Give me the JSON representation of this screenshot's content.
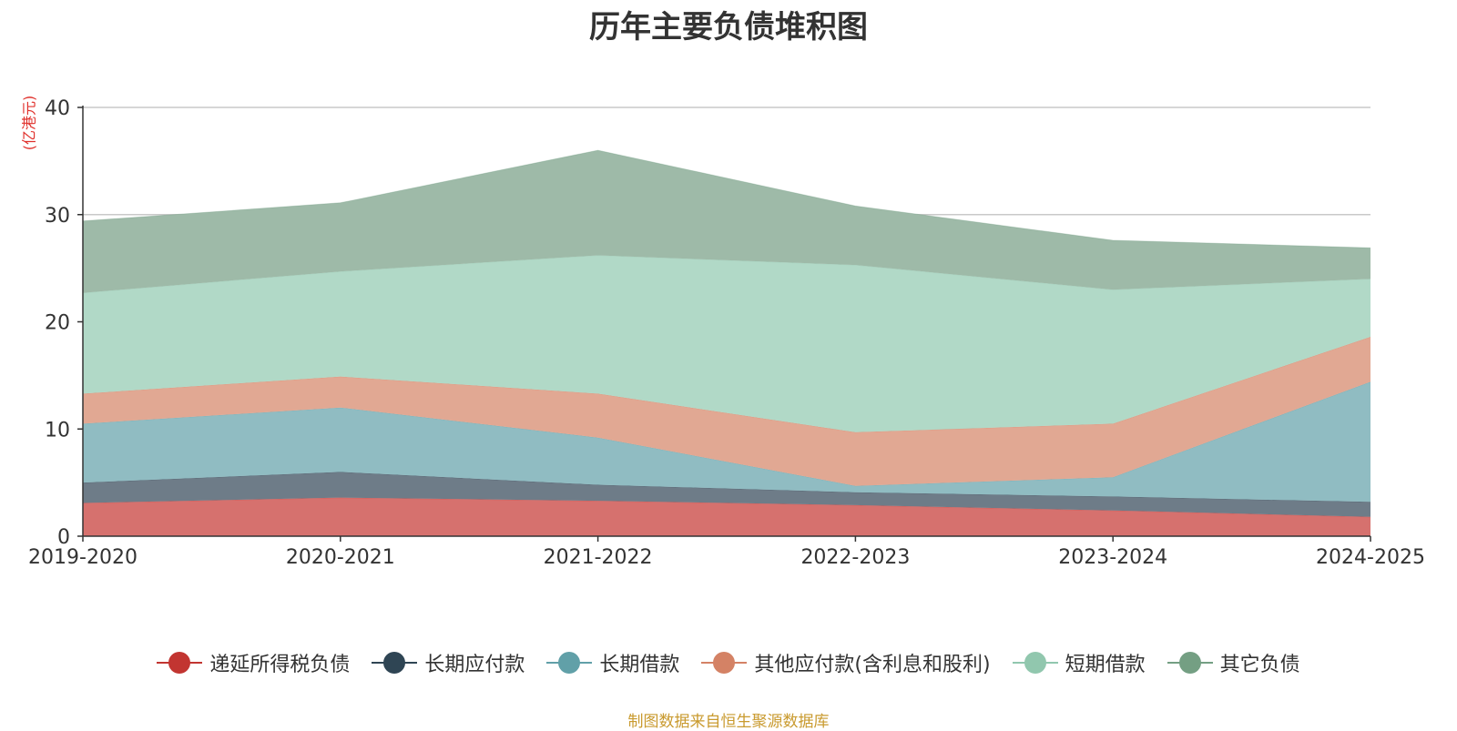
{
  "chart_data": {
    "type": "area",
    "stacked": true,
    "title": "历年主要负债堆积图",
    "unit_label": "(亿港元)",
    "categories": [
      "2019-2020",
      "2020-2021",
      "2021-2022",
      "2022-2023",
      "2023-2024",
      "2024-2025"
    ],
    "ylim": [
      0,
      40
    ],
    "yticks": [
      0,
      10,
      20,
      30,
      40
    ],
    "grid": true,
    "legend_position": "bottom",
    "series": [
      {
        "name": "递延所得税负债",
        "values": [
          3.1,
          3.6,
          3.3,
          2.9,
          2.4,
          1.8
        ],
        "color": "#c23531",
        "fill": "#d6716e"
      },
      {
        "name": "长期应付款",
        "values": [
          1.9,
          2.4,
          1.5,
          1.2,
          1.3,
          1.4
        ],
        "color": "#2f4554",
        "fill": "#6e7c88"
      },
      {
        "name": "长期借款",
        "values": [
          5.5,
          6.0,
          4.4,
          0.6,
          1.8,
          11.2
        ],
        "color": "#61a0a8",
        "fill": "#90bcc2"
      },
      {
        "name": "其他应付款(含利息和股利)",
        "values": [
          2.8,
          2.9,
          4.1,
          5.0,
          5.0,
          4.2
        ],
        "color": "#d48265",
        "fill": "#e1a893"
      },
      {
        "name": "短期借款",
        "values": [
          9.4,
          9.8,
          12.9,
          15.6,
          12.5,
          5.4
        ],
        "color": "#91c7ae",
        "fill": "#b1d9c7"
      },
      {
        "name": "其它负债",
        "values": [
          6.7,
          6.4,
          9.8,
          5.5,
          4.6,
          2.9
        ],
        "color": "#749f83",
        "fill": "#9eba a8"
      }
    ]
  },
  "source_text": "制图数据来自恒生聚源数据库",
  "colors": {
    "title": "#333333",
    "unit": "#e0312c",
    "source": "#c99a2e",
    "axis": "#333333",
    "grid": "#c8c8c8"
  }
}
